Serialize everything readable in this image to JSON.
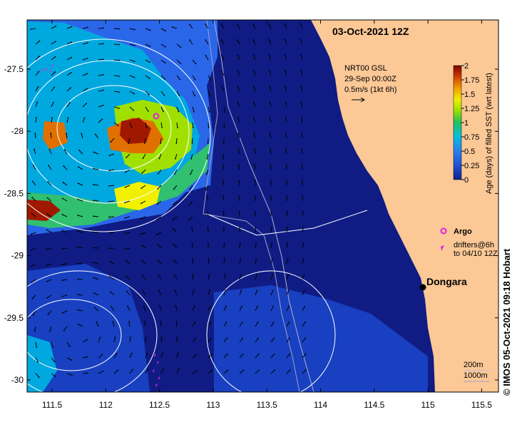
{
  "map": {
    "date_title": "03-Oct-2021 12Z",
    "credit": "IMOS 05-Oct-2021 09:18 Hobart",
    "copyright_symbol": "©",
    "x_ticks": [
      "111.5",
      "112",
      "112.5",
      "113",
      "113.5",
      "114",
      "114.5",
      "115",
      "115.5"
    ],
    "y_ticks": [
      "-27.5",
      "-28",
      "-28.5",
      "-29",
      "-29.5",
      "-30"
    ],
    "current_legend": {
      "line1": "NRT00 GSL",
      "line2": "29-Sep 00:00Z",
      "line3": "0.5m/s (1kt 6h)"
    },
    "colorbar": {
      "label": "Age (days) of filled SST (wrt latest)",
      "ticks": [
        "2",
        "1.75",
        "1.5",
        "1.25",
        "1",
        "0.75",
        "0.5",
        "0.25",
        "0"
      ],
      "colors": [
        "#8b0000",
        "#b03000",
        "#e06000",
        "#f0b000",
        "#f0f000",
        "#a0e000",
        "#40c000",
        "#00b0a0",
        "#00a0e0",
        "#2060e0",
        "#10208a"
      ]
    },
    "markers_legend": {
      "argo_label": "Argo",
      "drifters_line1": "drifters@6h",
      "drifters_line2": "to 04/10 12Z"
    },
    "place": {
      "name": "Dongara"
    },
    "bathy_legend": {
      "line1": "200m",
      "line2": "1000m"
    },
    "colors": {
      "land": "#fbc896",
      "ocean_deep": "#101c84",
      "ocean_mid": "#1840c0",
      "ocean_light": "#2a66e8",
      "argo": "#e020e0"
    }
  }
}
